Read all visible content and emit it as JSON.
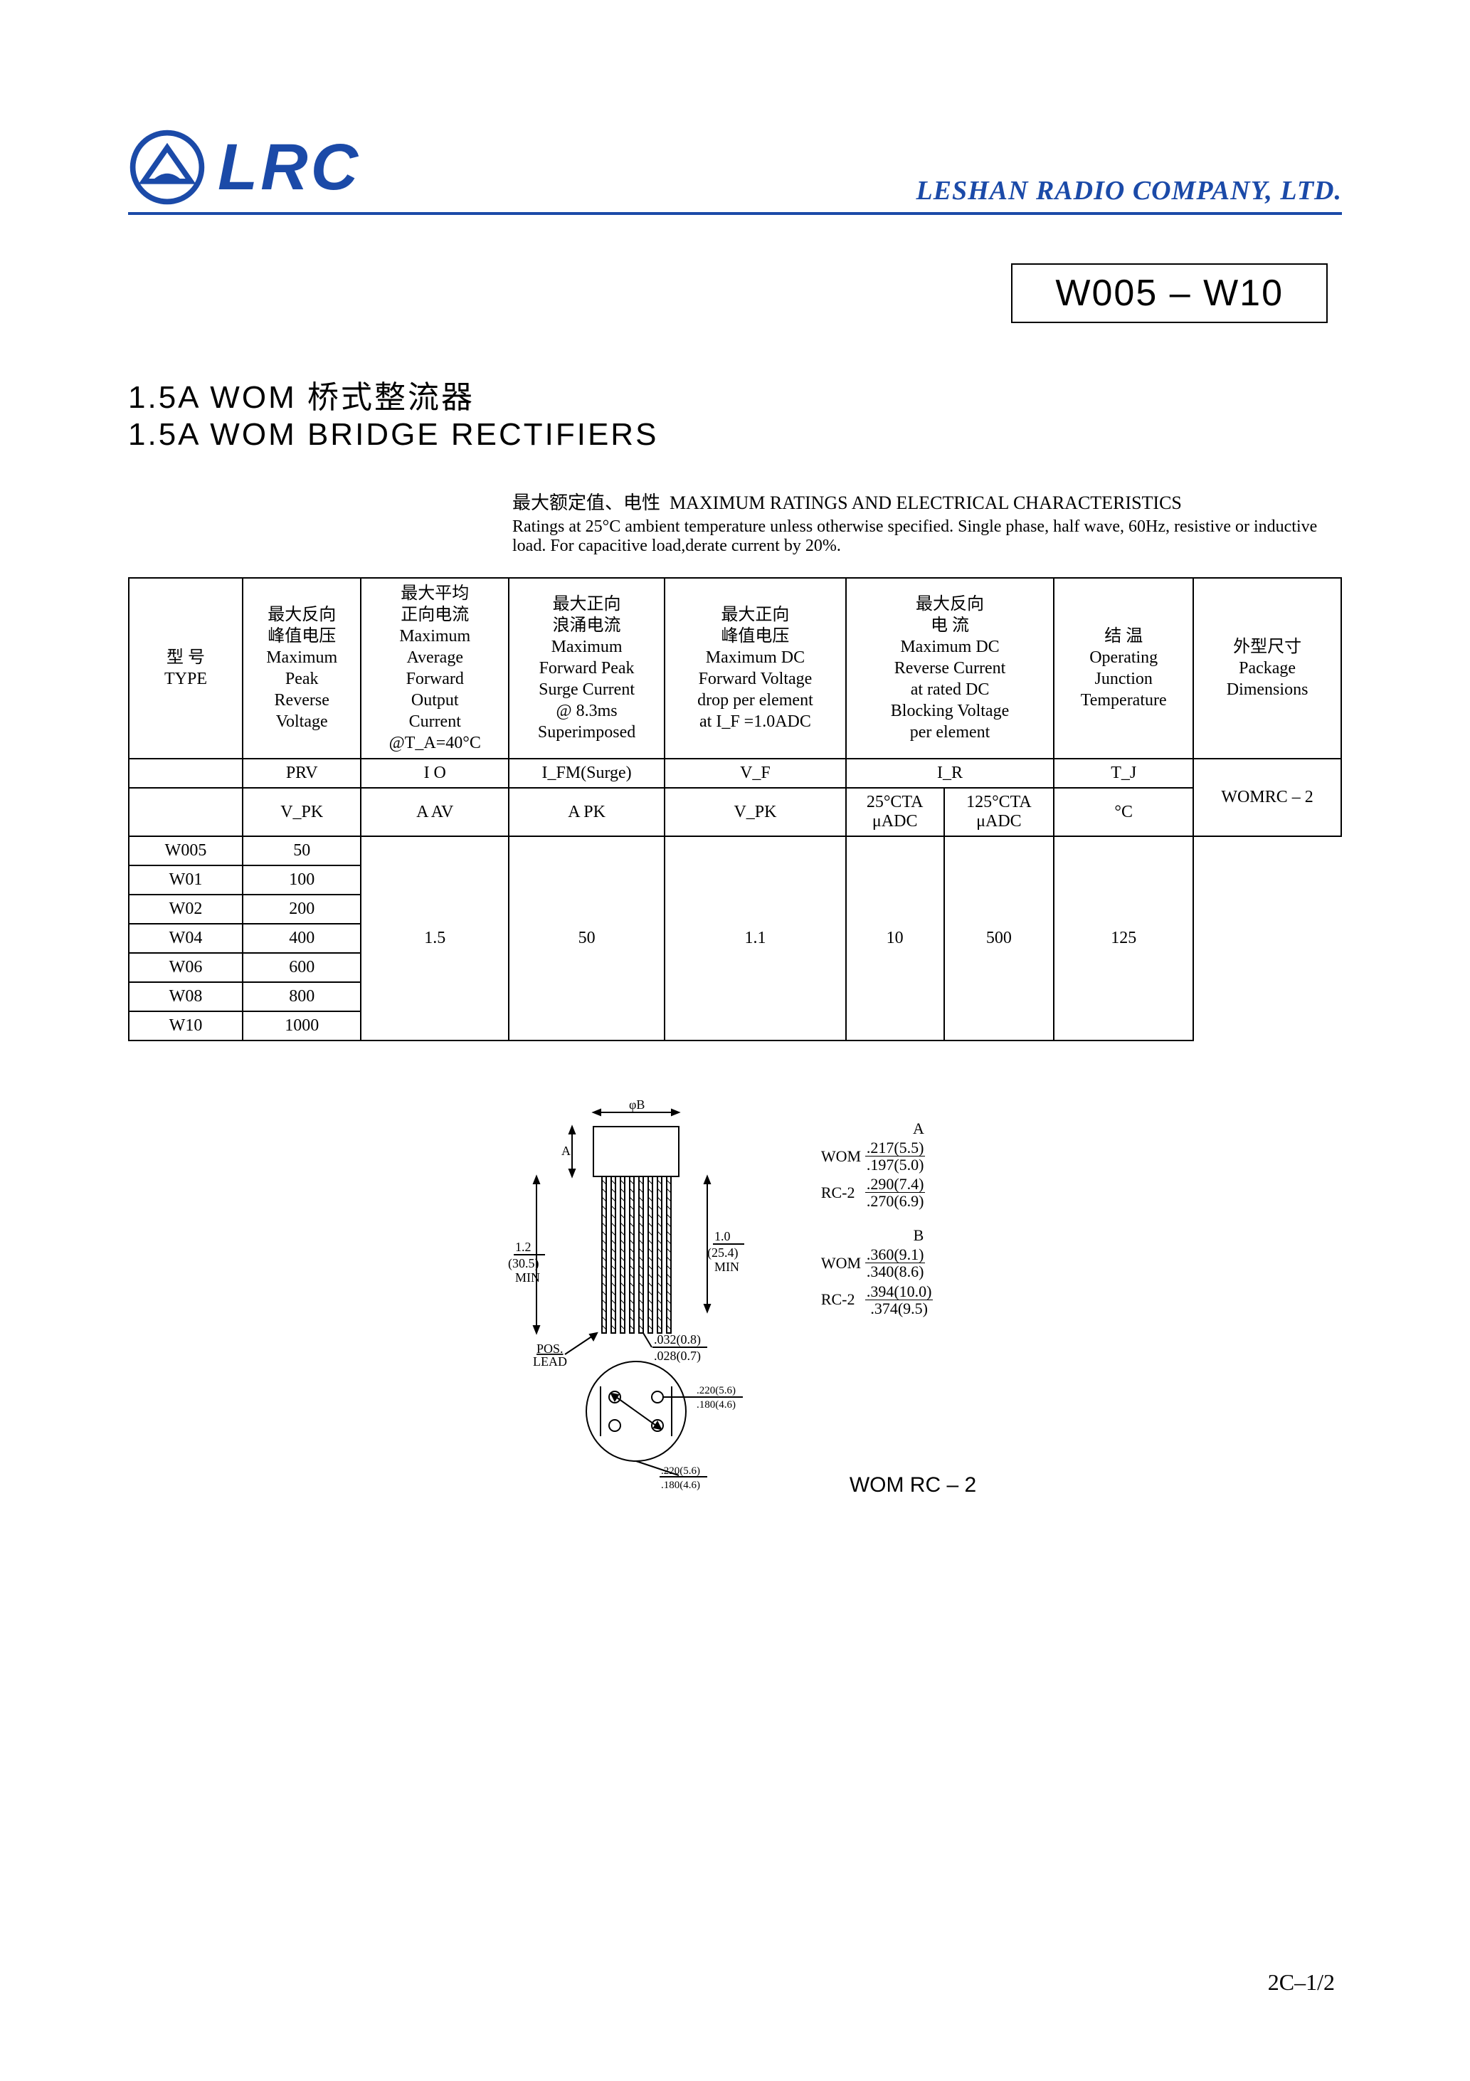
{
  "header": {
    "logo_text": "LRC",
    "company": "LESHAN RADIO COMPANY, LTD.",
    "logo_color": "#1b4aa8"
  },
  "part_box": "W005 – W10",
  "title_cn": "1.5A WOM 桥式整流器",
  "title_en": "1.5A WOM BRIDGE RECTIFIERS",
  "ratings_caption_cn": "最大额定值、电性",
  "ratings_caption_en": "MAXIMUM RATINGS AND ELECTRICAL CHARACTERISTICS",
  "ratings_note": "Ratings at 25°C ambient temperature unless otherwise specified. Single phase, half wave, 60Hz, resistive or inductive load. For capacitive load,derate current by 20%.",
  "table": {
    "headers": [
      {
        "cn": "型 号",
        "en": "TYPE"
      },
      {
        "cn": "最大反向\n峰值电压",
        "en": "Maximum\nPeak\nReverse\nVoltage"
      },
      {
        "cn": "最大平均\n正向电流",
        "en": "Maximum\nAverage\nForward\nOutput\nCurrent\n@T_A=40°C"
      },
      {
        "cn": "最大正向\n浪涌电流",
        "en": "Maximum\nForward Peak\nSurge Current\n@ 8.3ms\nSuperimposed"
      },
      {
        "cn": "最大正向\n峰值电压",
        "en": "Maximum DC\nForward Voltage\ndrop per element\nat I_F =1.0ADC"
      },
      {
        "cn": "最大反向\n电 流",
        "en": "Maximum DC\nReverse Current\nat rated DC\nBlocking Voltage\nper element"
      },
      {
        "cn": "结 温",
        "en": "Operating\nJunction\nTemperature"
      },
      {
        "cn": "外型尺寸",
        "en": "Package\nDimensions"
      }
    ],
    "row2": [
      "",
      "PRV",
      "I O",
      "I_FM(Surge)",
      "V_F",
      "I_R",
      "T_J",
      ""
    ],
    "row3": [
      "",
      "V_PK",
      "A AV",
      "A PK",
      "V_PK",
      "25°CTA\nμADC",
      "125°CTA\nμADC",
      "°C"
    ],
    "types": [
      "W005",
      "W01",
      "W02",
      "W04",
      "W06",
      "W08",
      "W10"
    ],
    "prv": [
      "50",
      "100",
      "200",
      "400",
      "600",
      "800",
      "1000"
    ],
    "io": "1.5",
    "ifm": "50",
    "vf": "1.1",
    "ir25": "10",
    "ir125": "500",
    "tj": "125",
    "pkg": "WOMRC – 2"
  },
  "diagram": {
    "phiB": "φB",
    "A": "A",
    "len1_num": "1.2",
    "len1_den": "(30.5)",
    "len1_sub": "MIN",
    "len2_num": "1.0",
    "len2_den": "(25.4)",
    "len2_sub": "MIN",
    "pin_num": ".032(0.8)",
    "pin_den": ".028(0.7)",
    "pos": "POS.",
    "lead": "LEAD",
    "circ1_num": ".220(5.6)",
    "circ1_den": ".180(4.6)",
    "circ2_num": ".220(5.6)",
    "circ2_den": ".180(4.6)"
  },
  "dims": {
    "A_label": "A",
    "A": [
      {
        "tag": "WOM",
        "num": ".217(5.5)",
        "den": ".197(5.0)"
      },
      {
        "tag": "RC-2",
        "num": ".290(7.4)",
        "den": ".270(6.9)"
      }
    ],
    "B_label": "B",
    "B": [
      {
        "tag": "WOM",
        "num": ".360(9.1)",
        "den": ".340(8.6)"
      },
      {
        "tag": "RC-2",
        "num": ".394(10.0)",
        "den": ".374(9.5)"
      }
    ]
  },
  "wom_label": "WOM RC – 2",
  "pagenum": "2C–1/2"
}
